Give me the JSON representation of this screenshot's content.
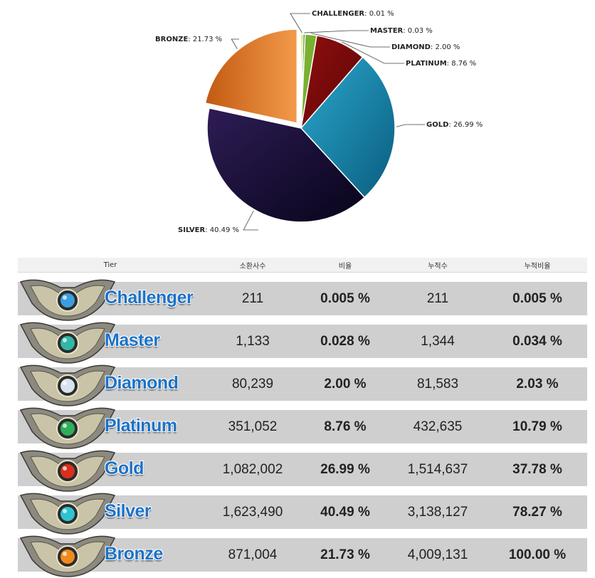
{
  "chart_data": {
    "type": "pie",
    "title": "",
    "slices": [
      {
        "label": "CHALLENGER",
        "value": 0.01,
        "display": "0.01 %",
        "color": "#d9d90a"
      },
      {
        "label": "MASTER",
        "value": 0.03,
        "display": "0.03 %",
        "color": "#2b7f36"
      },
      {
        "label": "DIAMOND",
        "value": 2.0,
        "display": "2.00 %",
        "color": "#7ab032"
      },
      {
        "label": "PLATINUM",
        "value": 8.76,
        "display": "8.76 %",
        "color": "#7a0a0a"
      },
      {
        "label": "GOLD",
        "value": 26.99,
        "display": "26.99 %",
        "color": "#1784a8"
      },
      {
        "label": "SILVER",
        "value": 40.49,
        "display": "40.49 %",
        "color": "#1e1238"
      },
      {
        "label": "BRONZE",
        "value": 21.73,
        "display": "21.73 %",
        "color": "#e07f2d",
        "exploded": true
      }
    ],
    "legend": "none",
    "label_style": "callout"
  },
  "table": {
    "headers": [
      "Tier",
      "소환사수",
      "비율",
      "누적수",
      "누적비율"
    ],
    "rows": [
      {
        "tier": "Challenger",
        "count": "211",
        "ratio": "0.005 %",
        "cum_count": "211",
        "cum_ratio": "0.005 %",
        "emblem_color": "#3a9fe0"
      },
      {
        "tier": "Master",
        "count": "1,133",
        "ratio": "0.028 %",
        "cum_count": "1,344",
        "cum_ratio": "0.034 %",
        "emblem_color": "#2fb8a8"
      },
      {
        "tier": "Diamond",
        "count": "80,239",
        "ratio": "2.00 %",
        "cum_count": "81,583",
        "cum_ratio": "2.03 %",
        "emblem_color": "#d7e4ef"
      },
      {
        "tier": "Platinum",
        "count": "351,052",
        "ratio": "8.76 %",
        "cum_count": "432,635",
        "cum_ratio": "10.79 %",
        "emblem_color": "#2fae5a"
      },
      {
        "tier": "Gold",
        "count": "1,082,002",
        "ratio": "26.99 %",
        "cum_count": "1,514,637",
        "cum_ratio": "37.78 %",
        "emblem_color": "#d8301e"
      },
      {
        "tier": "Silver",
        "count": "1,623,490",
        "ratio": "40.49 %",
        "cum_count": "3,138,127",
        "cum_ratio": "78.27 %",
        "emblem_color": "#2fc3d0"
      },
      {
        "tier": "Bronze",
        "count": "871,004",
        "ratio": "21.73 %",
        "cum_count": "4,009,131",
        "cum_ratio": "100.00 %",
        "emblem_color": "#f08a1d"
      }
    ]
  }
}
